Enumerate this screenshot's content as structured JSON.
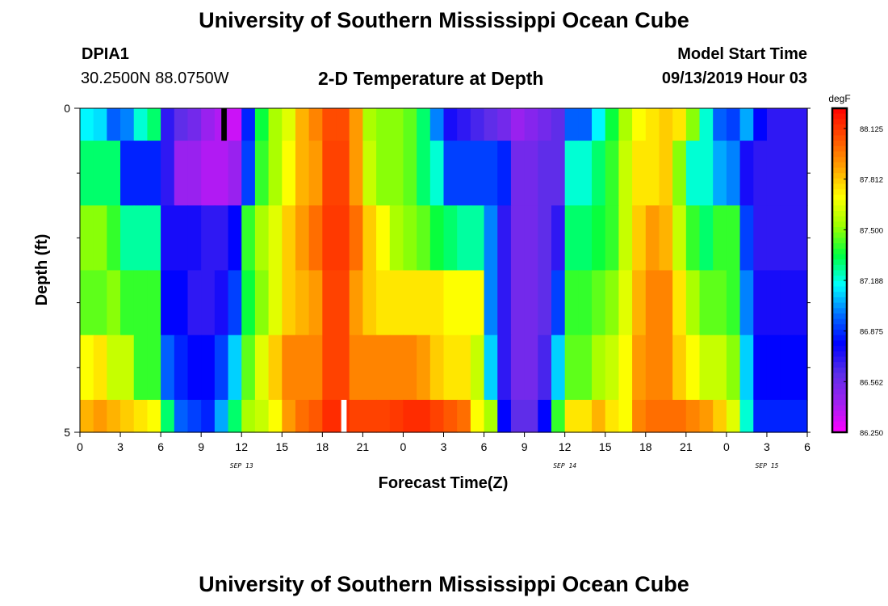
{
  "page": {
    "top_title": "University of Southern Mississippi Ocean Cube",
    "bottom_title": "University of Southern Mississippi Ocean Cube",
    "station_id": "DPIA1",
    "station_coords": "30.2500N 88.0750W",
    "chart_title": "2-D Temperature at Depth",
    "model_label": "Model Start Time",
    "model_time": "09/13/2019 Hour 03"
  },
  "chart_data": {
    "type": "heatmap",
    "title": "2-D Temperature at Depth",
    "xlabel": "Forecast Time(Z)",
    "ylabel": "Depth (ft)",
    "x_range": [
      0,
      54
    ],
    "y_range": [
      0,
      5
    ],
    "x_ticks": [
      {
        "v": 0,
        "label": "0"
      },
      {
        "v": 3,
        "label": "3"
      },
      {
        "v": 6,
        "label": "6"
      },
      {
        "v": 9,
        "label": "9"
      },
      {
        "v": 12,
        "label": "12"
      },
      {
        "v": 15,
        "label": "15"
      },
      {
        "v": 18,
        "label": "18"
      },
      {
        "v": 21,
        "label": "21"
      },
      {
        "v": 24,
        "label": "0"
      },
      {
        "v": 27,
        "label": "3"
      },
      {
        "v": 30,
        "label": "6"
      },
      {
        "v": 33,
        "label": "9"
      },
      {
        "v": 36,
        "label": "12"
      },
      {
        "v": 39,
        "label": "15"
      },
      {
        "v": 42,
        "label": "18"
      },
      {
        "v": 45,
        "label": "21"
      },
      {
        "v": 48,
        "label": "0"
      },
      {
        "v": 51,
        "label": "3"
      },
      {
        "v": 54,
        "label": "6"
      }
    ],
    "date_labels": [
      {
        "v": 12,
        "label": "SEP 13"
      },
      {
        "v": 36,
        "label": "SEP 14"
      },
      {
        "v": 51,
        "label": "SEP 15"
      }
    ],
    "y_ticks": [
      {
        "v": 0,
        "label": "0"
      },
      {
        "v": 5,
        "label": "5"
      }
    ],
    "y_minor_ticks": [
      1,
      2,
      3,
      4
    ],
    "colorbar": {
      "unit": "degF",
      "min": 86.25,
      "max": 88.25,
      "tick_values": [
        86.25,
        86.5625,
        86.875,
        87.1875,
        87.5,
        87.8125,
        88.125
      ],
      "tick_labels": [
        "86.250",
        "86.562",
        "86.875",
        "87.188",
        "87.500",
        "87.812",
        "88.125"
      ]
    },
    "time_steps": [
      0,
      1,
      2,
      3,
      4,
      5,
      6,
      7,
      8,
      9,
      10,
      11,
      12,
      13,
      14,
      15,
      16,
      17,
      18,
      19,
      20,
      21,
      22,
      23,
      24,
      25,
      26,
      27,
      28,
      29,
      30,
      31,
      32,
      33,
      34,
      35,
      36,
      37,
      38,
      39,
      40,
      41,
      42,
      43,
      44,
      45,
      46,
      47,
      48,
      49,
      50,
      51,
      52,
      53
    ],
    "depth_layers": [
      {
        "top": 0.0,
        "bottom": 0.5,
        "values": [
          87.15,
          87.12,
          86.95,
          87.0,
          87.2,
          87.3,
          86.7,
          86.6,
          86.55,
          86.45,
          86.4,
          86.35,
          86.85,
          87.35,
          87.55,
          87.65,
          87.85,
          87.95,
          88.08,
          88.08,
          87.9,
          87.55,
          87.5,
          87.5,
          87.45,
          87.3,
          87.0,
          86.75,
          86.7,
          86.65,
          86.6,
          86.55,
          86.45,
          86.5,
          86.55,
          86.6,
          86.95,
          86.95,
          87.15,
          87.35,
          87.55,
          87.7,
          87.75,
          87.8,
          87.75,
          87.5,
          87.2,
          86.95,
          86.9,
          87.05,
          86.8,
          86.7,
          86.7,
          86.7
        ]
      },
      {
        "top": 0.5,
        "bottom": 1.5,
        "values": [
          87.3,
          87.3,
          87.3,
          86.85,
          86.85,
          86.85,
          86.7,
          86.45,
          86.45,
          86.4,
          86.4,
          86.45,
          86.9,
          87.4,
          87.55,
          87.7,
          87.85,
          87.9,
          88.1,
          88.1,
          87.9,
          87.6,
          87.5,
          87.5,
          87.45,
          87.3,
          87.2,
          86.9,
          86.9,
          86.9,
          86.9,
          86.85,
          86.55,
          86.55,
          86.6,
          86.6,
          87.2,
          87.2,
          87.3,
          87.4,
          87.6,
          87.75,
          87.75,
          87.8,
          87.5,
          87.2,
          87.2,
          87.05,
          87.0,
          86.75,
          86.7,
          86.7,
          86.7,
          86.7
        ]
      },
      {
        "top": 1.5,
        "bottom": 2.5,
        "values": [
          87.5,
          87.5,
          87.4,
          87.25,
          87.25,
          87.25,
          86.75,
          86.75,
          86.75,
          86.7,
          86.7,
          86.8,
          87.4,
          87.55,
          87.65,
          87.8,
          87.9,
          88.0,
          88.12,
          88.12,
          88.0,
          87.8,
          87.7,
          87.55,
          87.5,
          87.45,
          87.35,
          87.3,
          87.25,
          87.25,
          87.0,
          86.7,
          86.55,
          86.55,
          86.6,
          86.7,
          87.3,
          87.3,
          87.35,
          87.4,
          87.6,
          87.8,
          87.9,
          87.85,
          87.6,
          87.4,
          87.3,
          87.4,
          87.4,
          86.9,
          86.7,
          86.7,
          86.7,
          86.7
        ]
      },
      {
        "top": 2.5,
        "bottom": 3.5,
        "values": [
          87.45,
          87.45,
          87.5,
          87.4,
          87.4,
          87.4,
          86.8,
          86.8,
          86.7,
          86.7,
          86.75,
          86.9,
          87.35,
          87.5,
          87.65,
          87.8,
          87.85,
          87.9,
          88.1,
          88.1,
          87.9,
          87.8,
          87.75,
          87.75,
          87.75,
          87.75,
          87.75,
          87.7,
          87.7,
          87.7,
          87.0,
          86.7,
          86.55,
          86.55,
          86.6,
          86.9,
          87.4,
          87.4,
          87.45,
          87.5,
          87.65,
          87.85,
          87.95,
          87.95,
          87.75,
          87.55,
          87.45,
          87.45,
          87.4,
          87.0,
          86.75,
          86.75,
          86.75,
          86.75
        ]
      },
      {
        "top": 3.5,
        "bottom": 4.5,
        "values": [
          87.7,
          87.75,
          87.6,
          87.6,
          87.4,
          87.4,
          86.95,
          86.85,
          86.8,
          86.8,
          86.9,
          87.1,
          87.45,
          87.65,
          87.8,
          87.95,
          87.95,
          87.95,
          88.1,
          88.1,
          87.95,
          87.95,
          87.95,
          87.95,
          87.95,
          87.9,
          87.8,
          87.75,
          87.75,
          87.6,
          87.1,
          86.7,
          86.55,
          86.55,
          86.65,
          87.1,
          87.45,
          87.45,
          87.55,
          87.6,
          87.7,
          87.9,
          87.95,
          87.95,
          87.8,
          87.7,
          87.6,
          87.6,
          87.5,
          87.1,
          86.8,
          86.8,
          86.8,
          86.8
        ]
      },
      {
        "top": 4.5,
        "bottom": 5.0,
        "values": [
          87.85,
          87.9,
          87.85,
          87.8,
          87.75,
          87.7,
          87.3,
          86.95,
          86.9,
          86.85,
          87.05,
          87.3,
          87.55,
          87.6,
          87.7,
          87.9,
          88.0,
          88.05,
          88.15,
          88.15,
          88.1,
          88.1,
          88.1,
          88.12,
          88.15,
          88.15,
          88.1,
          88.05,
          88.0,
          87.7,
          87.55,
          86.8,
          86.6,
          86.6,
          86.8,
          87.4,
          87.75,
          87.75,
          87.85,
          87.75,
          87.7,
          87.95,
          88.0,
          88.0,
          88.0,
          87.95,
          87.9,
          87.8,
          87.65,
          87.2,
          86.85,
          86.85,
          86.85,
          86.85
        ]
      }
    ],
    "markers": [
      {
        "name": "black-marker",
        "x_start": 10.5,
        "x_end": 10.9,
        "depth_top": 0.0,
        "depth_bottom": 0.5,
        "color": "#000000"
      },
      {
        "name": "white-marker",
        "x_start": 19.4,
        "x_end": 19.8,
        "depth_top": 4.5,
        "depth_bottom": 5.0,
        "color": "#ffffff"
      }
    ]
  },
  "colors": {
    "scale": [
      "#ff00ff",
      "#a020f0",
      "#5a2ee8",
      "#0000ff",
      "#0070ff",
      "#00ffff",
      "#00ff40",
      "#9cff00",
      "#ffff00",
      "#ffa000",
      "#ff5000",
      "#ff0000"
    ]
  }
}
